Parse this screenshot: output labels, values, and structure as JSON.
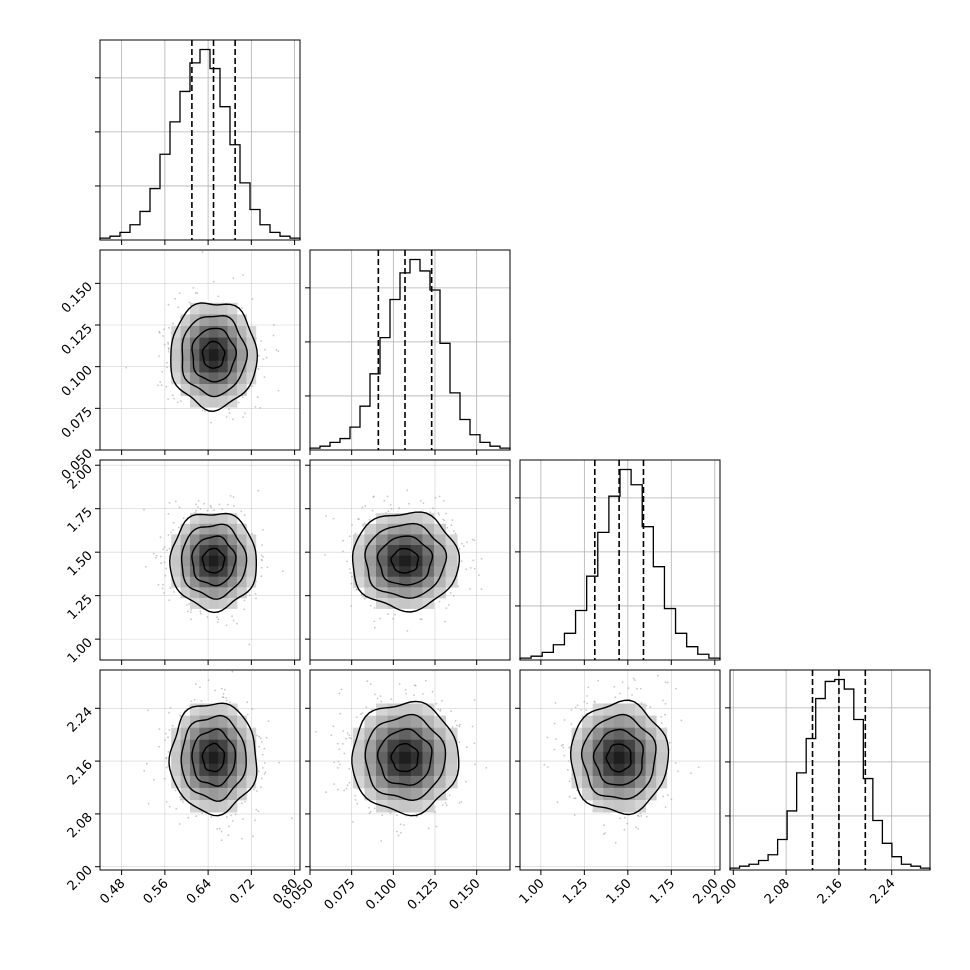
{
  "chart_data": {
    "type": "corner",
    "grid": true,
    "parameters": [
      {
        "range": [
          0.44,
          0.81
        ],
        "ticks": [
          0.48,
          0.56,
          0.64,
          0.72,
          0.8
        ],
        "tick_labels": [
          "0.48",
          "0.56",
          "0.64",
          "0.72",
          "0.80"
        ],
        "quantiles": [
          0.61,
          0.65,
          0.69
        ],
        "center": 0.65,
        "sigma": 0.04,
        "hist_counts": [
          1,
          2,
          4,
          8,
          15,
          27,
          45,
          62,
          78,
          93,
          100,
          90,
          70,
          50,
          30,
          16,
          8,
          4,
          2,
          1
        ]
      },
      {
        "range": [
          0.05,
          0.17
        ],
        "ticks": [
          0.05,
          0.075,
          0.1,
          0.125,
          0.15
        ],
        "tick_labels": [
          "0.050",
          "0.075",
          "0.100",
          "0.125",
          "0.150"
        ],
        "quantiles": [
          0.091,
          0.107,
          0.123
        ],
        "center": 0.107,
        "sigma": 0.016,
        "hist_counts": [
          1,
          2,
          4,
          6,
          12,
          23,
          40,
          59,
          79,
          93,
          100,
          94,
          84,
          56,
          30,
          16,
          8,
          4,
          2,
          1
        ]
      },
      {
        "range": [
          0.88,
          2.03
        ],
        "ticks": [
          1.0,
          1.25,
          1.5,
          1.75,
          2.0
        ],
        "tick_labels": [
          "1.00",
          "1.25",
          "1.50",
          "1.75",
          "2.00"
        ],
        "quantiles": [
          1.31,
          1.45,
          1.59
        ],
        "center": 1.45,
        "sigma": 0.14,
        "hist_counts": [
          1,
          2,
          4,
          8,
          14,
          26,
          44,
          67,
          86,
          100,
          92,
          70,
          49,
          27,
          14,
          7,
          3,
          1
        ]
      },
      {
        "range": [
          1.995,
          2.298
        ],
        "ticks": [
          2.0,
          2.08,
          2.16,
          2.24
        ],
        "tick_labels": [
          "2.00",
          "2.08",
          "2.16",
          "2.24"
        ],
        "quantiles": [
          2.12,
          2.16,
          2.2
        ],
        "center": 2.165,
        "sigma": 0.042,
        "hist_counts": [
          1,
          2,
          3,
          5,
          8,
          16,
          31,
          51,
          69,
          90,
          99,
          100,
          95,
          79,
          48,
          26,
          14,
          7,
          3,
          2,
          1
        ]
      }
    ],
    "y_axis_labels": {
      "row_1": [
        "0.050",
        "0.075",
        "0.100",
        "0.125",
        "0.150"
      ],
      "row_2": [
        "1.00",
        "1.25",
        "1.50",
        "1.75",
        "2.00"
      ],
      "row_3": [
        "2.00",
        "2.08",
        "2.16",
        "2.24"
      ]
    },
    "contour_levels": [
      "0.5 sigma",
      "1 sigma",
      "1.5 sigma",
      "2 sigma"
    ],
    "colors": {
      "line": "#000000",
      "grid": "#b0b0b0",
      "scatter": "#999999",
      "density_max": "#222222"
    }
  }
}
